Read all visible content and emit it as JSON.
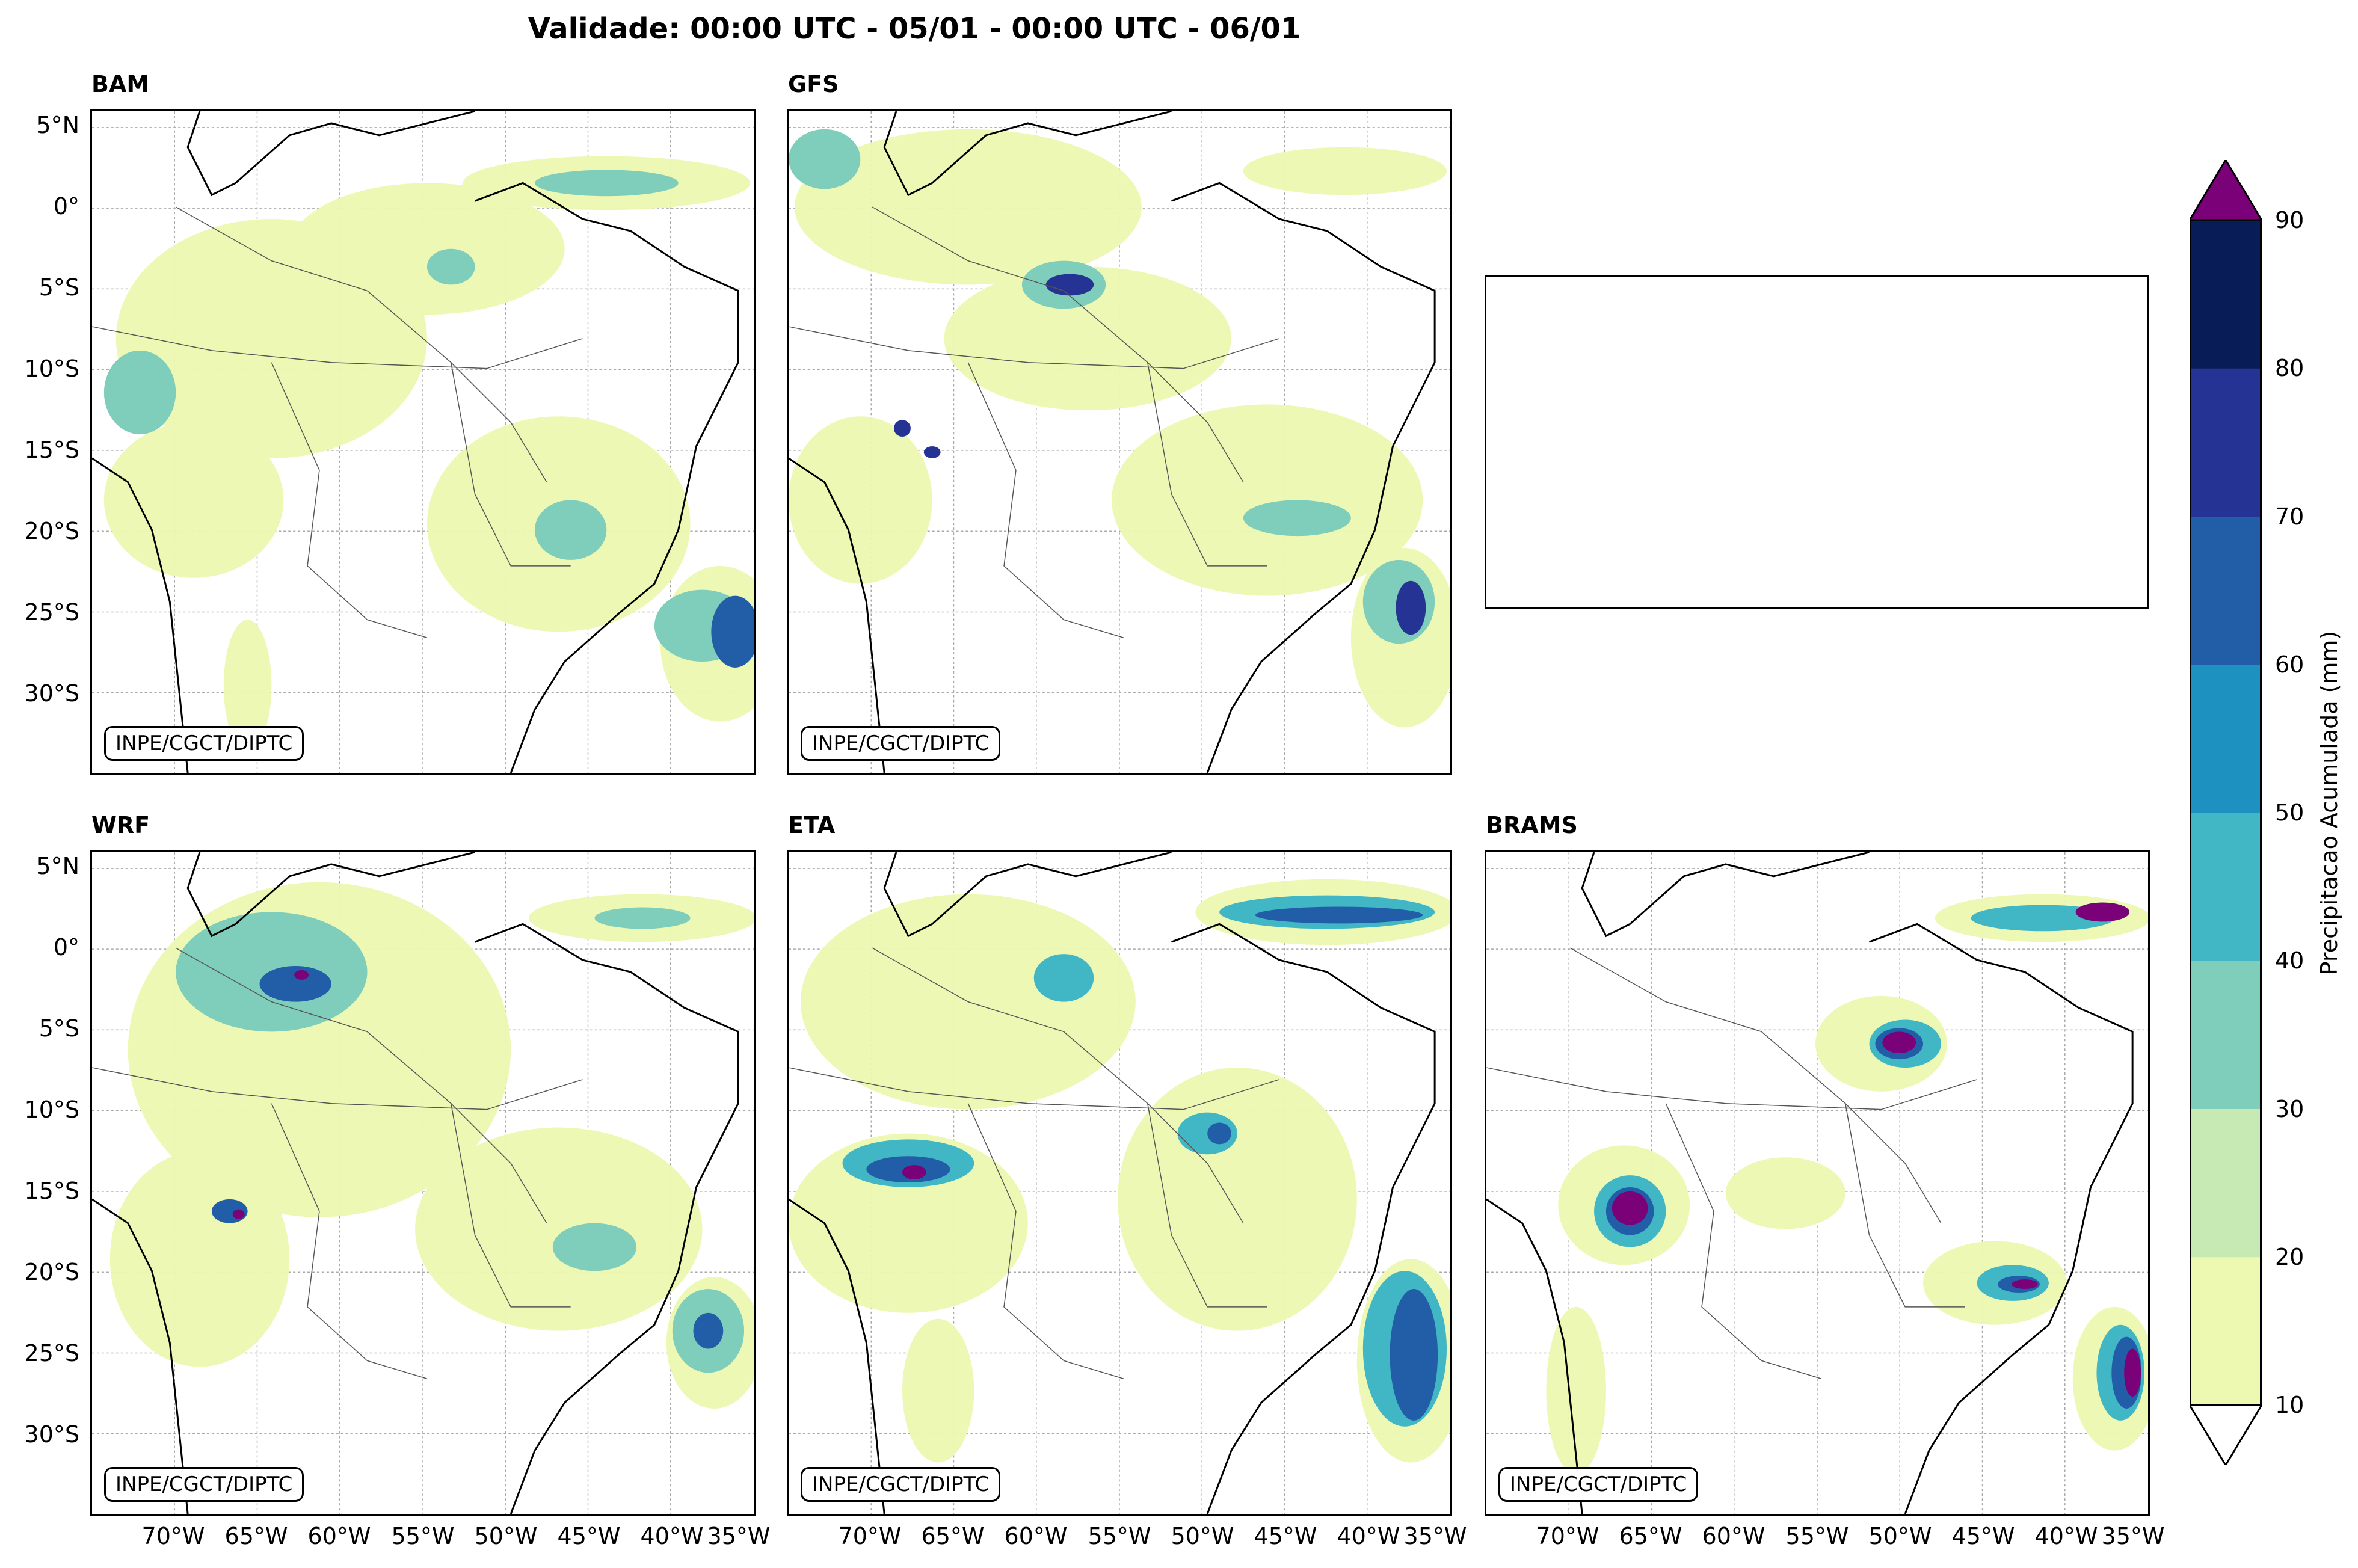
{
  "title": "Validade: 00:00 UTC - 05/01 - 00:00 UTC - 06/01",
  "credit": "INPE/CGCT/DIPTC",
  "panels": [
    {
      "label": "BAM"
    },
    {
      "label": "GFS"
    },
    {
      "label": "WRF"
    },
    {
      "label": "ETA"
    },
    {
      "label": "BRAMS"
    }
  ],
  "lat_ticks": [
    "5°N",
    "0°",
    "5°S",
    "10°S",
    "15°S",
    "20°S",
    "25°S",
    "30°S"
  ],
  "lon_ticks": [
    "70°W",
    "65°W",
    "60°W",
    "55°W",
    "50°W",
    "45°W",
    "40°W",
    "35°W"
  ],
  "colorbar": {
    "title": "Precipitacao Acumulada (mm)",
    "levels": [
      "10",
      "20",
      "30",
      "40",
      "50",
      "60",
      "70",
      "80",
      "90"
    ],
    "colors": [
      "#edf8b1",
      "#c7e9b4",
      "#7fcdbb",
      "#41b6c4",
      "#1d91c0",
      "#225ea8",
      "#253494",
      "#081d58"
    ],
    "over_color": "#7a0177",
    "under_color": "#ffffff"
  },
  "map_extent": {
    "lon": [
      -75,
      -35
    ],
    "lat": [
      -35,
      6
    ]
  }
}
